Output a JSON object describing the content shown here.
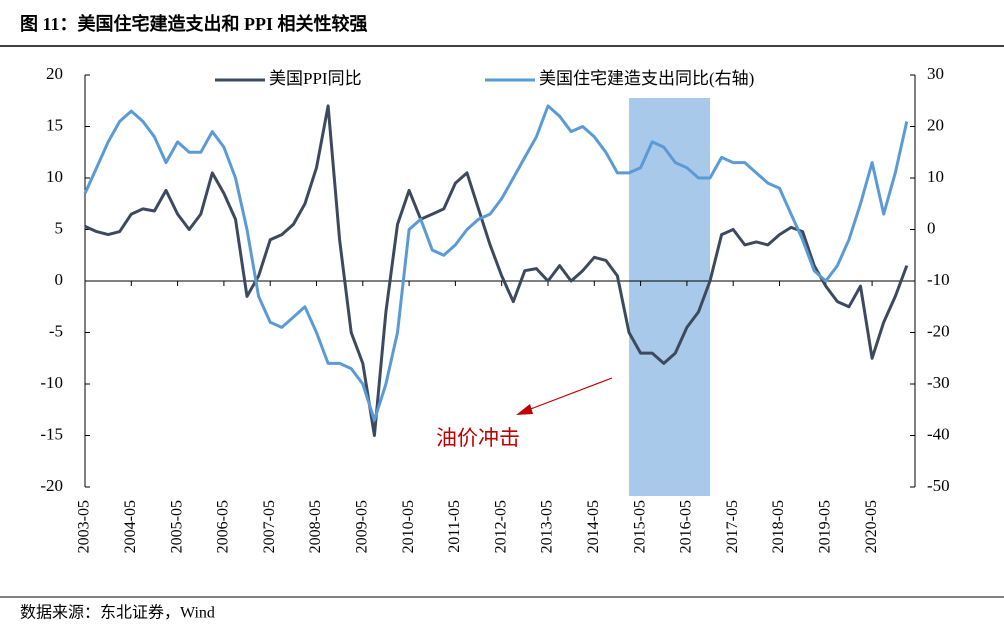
{
  "chart_data": {
    "type": "line",
    "title": "图 11：美国住宅建造支出和 PPI 相关性较强",
    "source": "数据来源：东北证券，Wind",
    "annotation": "油价冲击",
    "shade_range": [
      "2015-02",
      "2016-11"
    ],
    "categories": [
      "2003-05",
      null,
      null,
      null,
      "2004-05",
      null,
      null,
      null,
      "2005-05",
      null,
      null,
      null,
      "2006-05",
      null,
      null,
      null,
      "2007-05",
      null,
      null,
      null,
      "2008-05",
      null,
      null,
      null,
      "2009-05",
      null,
      null,
      null,
      "2010-05",
      null,
      null,
      null,
      "2011-05",
      null,
      null,
      null,
      "2012-05",
      null,
      null,
      null,
      "2013-05",
      null,
      null,
      null,
      "2014-05",
      null,
      null,
      null,
      "2015-05",
      null,
      null,
      null,
      "2016-05",
      null,
      null,
      null,
      "2017-05",
      null,
      null,
      null,
      "2018-05",
      null,
      null,
      null,
      "2019-05",
      null,
      null,
      null,
      "2020-05",
      null,
      null,
      null
    ],
    "series": [
      {
        "name": "美国PPI同比",
        "color": "#3d4a5e",
        "axis": "y",
        "values": [
          5.3,
          4.8,
          4.5,
          4.8,
          6.5,
          7.0,
          6.8,
          8.8,
          6.5,
          5.0,
          6.5,
          10.5,
          8.5,
          6.0,
          -1.5,
          0.5,
          4.0,
          4.5,
          5.5,
          7.5,
          11,
          17,
          4,
          -5,
          -8,
          -15,
          -3,
          5.5,
          8.8,
          6,
          6.5,
          7,
          9.5,
          10.5,
          7,
          3.5,
          0.5,
          -2,
          1,
          1.2,
          0,
          1.5,
          0,
          1.0,
          2.3,
          2,
          0.5,
          -5,
          -7,
          -7,
          -8,
          -7,
          -4.5,
          -3,
          0,
          4.5,
          5,
          3.5,
          3.8,
          3.5,
          4.5,
          5.2,
          4.8,
          1.5,
          -0.5,
          -2,
          -2.5,
          -0.5,
          -7.5,
          -4,
          -1.5,
          1.5
        ]
      },
      {
        "name": "美国住宅建造支出同比(右轴)",
        "color": "#5b9bd5",
        "axis": "y2",
        "values": [
          7,
          12,
          17,
          21,
          23,
          21,
          18,
          13,
          17,
          15,
          15,
          19,
          16,
          10,
          0,
          -13,
          -18,
          -19,
          -17,
          -15,
          -20,
          -26,
          -26,
          -27,
          -30,
          -37,
          -30,
          -20,
          0,
          2,
          -4,
          -5,
          -3,
          0,
          2,
          3,
          6,
          10,
          14,
          18,
          24,
          22,
          19,
          20,
          18,
          15,
          11,
          11,
          12,
          17,
          16,
          13,
          12,
          10,
          10,
          14,
          13,
          13,
          11,
          9,
          8,
          3,
          -2,
          -8,
          -10,
          -7,
          -2,
          5,
          13,
          3,
          11,
          21
        ]
      }
    ],
    "ylim": [
      -20,
      20
    ],
    "yticks": [
      -20,
      -15,
      -10,
      -5,
      0,
      5,
      10,
      15,
      20
    ],
    "y2lim": [
      -50,
      30
    ],
    "y2ticks": [
      -50,
      -40,
      -30,
      -20,
      -10,
      0,
      10,
      20,
      30
    ]
  }
}
